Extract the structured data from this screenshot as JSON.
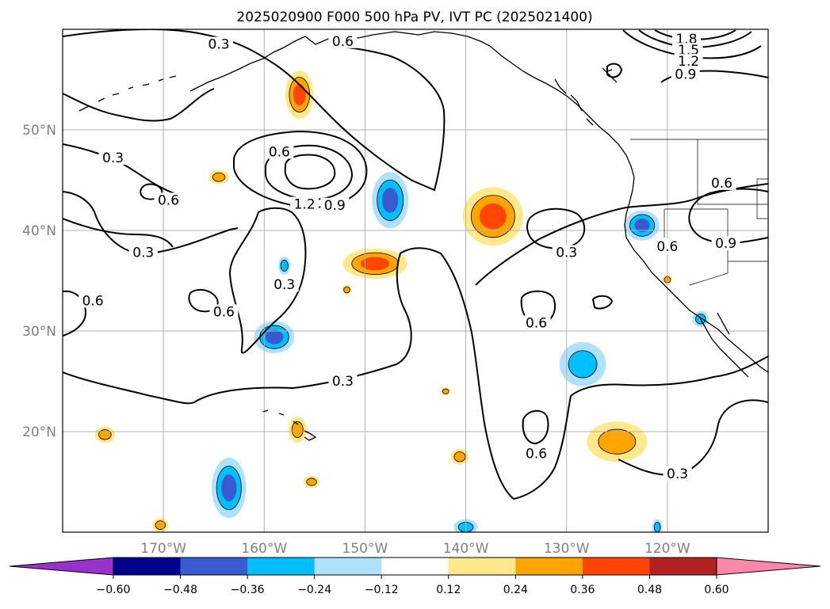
{
  "chart_data": {
    "type": "contour-map",
    "title": "2025020900 F000 500 hPa PV, IVT PC (2025021400)",
    "lon_range": [
      -180,
      -110
    ],
    "lat_range": [
      10,
      60
    ],
    "x_ticks": [
      {
        "lon": -170,
        "label": "170°W"
      },
      {
        "lon": -160,
        "label": "160°W"
      },
      {
        "lon": -150,
        "label": "150°W"
      },
      {
        "lon": -140,
        "label": "140°W"
      },
      {
        "lon": -130,
        "label": "130°W"
      },
      {
        "lon": -120,
        "label": "120°W"
      }
    ],
    "y_ticks": [
      {
        "lat": 20,
        "label": "20°N"
      },
      {
        "lat": 30,
        "label": "30°N"
      },
      {
        "lat": 40,
        "label": "40°N"
      },
      {
        "lat": 50,
        "label": "50°N"
      }
    ],
    "grid": true,
    "contour_line_color": "#000000",
    "contour_labels": [
      {
        "text": "0.3",
        "lon": -175,
        "lat": 47
      },
      {
        "text": "0.3",
        "lon": -164.5,
        "lat": 58.3
      },
      {
        "text": "0.6",
        "lon": -158.5,
        "lat": 47.6
      },
      {
        "text": "1.2",
        "lon": -156,
        "lat": 42.4
      },
      {
        "text": "0.9",
        "lon": -153,
        "lat": 42.3
      },
      {
        "text": "0.6",
        "lon": -169.5,
        "lat": 42.8
      },
      {
        "text": "0.3",
        "lon": -172,
        "lat": 37.6
      },
      {
        "text": "0.6",
        "lon": -177,
        "lat": 32.8
      },
      {
        "text": "0.3",
        "lon": -158,
        "lat": 34.4
      },
      {
        "text": "0.6",
        "lon": -164,
        "lat": 31.7
      },
      {
        "text": "0.3",
        "lon": -152.2,
        "lat": 24.8
      },
      {
        "text": "0.6",
        "lon": -152.2,
        "lat": 58.6
      },
      {
        "text": "1.8",
        "lon": -118.1,
        "lat": 58.8
      },
      {
        "text": "1.5",
        "lon": -117.9,
        "lat": 57.7
      },
      {
        "text": "1.2",
        "lon": -117.9,
        "lat": 56.6
      },
      {
        "text": "0.9",
        "lon": -118.2,
        "lat": 55.3
      },
      {
        "text": "0.6",
        "lon": -114.6,
        "lat": 44.5
      },
      {
        "text": "0.6",
        "lon": -120,
        "lat": 38.2
      },
      {
        "text": "0.9",
        "lon": -114.2,
        "lat": 38.5
      },
      {
        "text": "0.3",
        "lon": -130,
        "lat": 37.6
      },
      {
        "text": "0.6",
        "lon": -133,
        "lat": 30.6
      },
      {
        "text": "0.6",
        "lon": -133,
        "lat": 17.6
      },
      {
        "text": "0.3",
        "lon": -119,
        "lat": 15.6
      }
    ],
    "ivt_blobs": [
      {
        "lon": -156.5,
        "lat": 53.5,
        "rx": 1.4,
        "ry": 2.4,
        "value": 0.42
      },
      {
        "lon": -164.5,
        "lat": 45.3,
        "rx": 1.0,
        "ry": 0.7,
        "value": 0.27
      },
      {
        "lon": -147.5,
        "lat": 43,
        "rx": 1.8,
        "ry": 2.8,
        "value": -0.42
      },
      {
        "lon": -137.3,
        "lat": 41.4,
        "rx": 3.0,
        "ry": 2.9,
        "value": 0.45
      },
      {
        "lon": -149,
        "lat": 36.7,
        "rx": 3.2,
        "ry": 1.5,
        "value": 0.4
      },
      {
        "lon": -158,
        "lat": 36.5,
        "rx": 0.6,
        "ry": 0.9,
        "value": -0.35
      },
      {
        "lon": -151.8,
        "lat": 34.1,
        "rx": 0.5,
        "ry": 0.5,
        "value": 0.28
      },
      {
        "lon": -159,
        "lat": 29.4,
        "rx": 2.0,
        "ry": 1.6,
        "value": -0.42
      },
      {
        "lon": -128.4,
        "lat": 26.7,
        "rx": 2.3,
        "ry": 2.2,
        "value": -0.32
      },
      {
        "lon": -122.5,
        "lat": 40.5,
        "rx": 1.7,
        "ry": 1.5,
        "value": -0.42
      },
      {
        "lon": -120,
        "lat": 35.1,
        "rx": 0.5,
        "ry": 0.5,
        "value": 0.26
      },
      {
        "lon": -116.7,
        "lat": 31.2,
        "rx": 0.8,
        "ry": 0.8,
        "value": -0.3
      },
      {
        "lon": -156.7,
        "lat": 20.2,
        "rx": 0.9,
        "ry": 1.3,
        "value": 0.32
      },
      {
        "lon": -175.8,
        "lat": 19.7,
        "rx": 1.0,
        "ry": 0.8,
        "value": 0.27
      },
      {
        "lon": -163.5,
        "lat": 14.4,
        "rx": 1.7,
        "ry": 3.0,
        "value": -0.44
      },
      {
        "lon": -155.3,
        "lat": 15,
        "rx": 0.8,
        "ry": 0.6,
        "value": 0.26
      },
      {
        "lon": -140.6,
        "lat": 17.5,
        "rx": 0.9,
        "ry": 0.8,
        "value": 0.3
      },
      {
        "lon": -125,
        "lat": 19,
        "rx": 3.0,
        "ry": 2.0,
        "value": 0.32
      },
      {
        "lon": -142,
        "lat": 24,
        "rx": 0.5,
        "ry": 0.4,
        "value": 0.24
      },
      {
        "lon": -170.3,
        "lat": 10.7,
        "rx": 0.8,
        "ry": 0.7,
        "value": 0.27
      },
      {
        "lon": -140,
        "lat": 10.5,
        "rx": 1.2,
        "ry": 0.8,
        "value": -0.32
      },
      {
        "lon": -121,
        "lat": 10.5,
        "rx": 0.5,
        "ry": 0.8,
        "value": -0.28
      }
    ],
    "colorbar": {
      "levels": [
        -0.6,
        -0.48,
        -0.36,
        -0.24,
        -0.12,
        0.12,
        0.24,
        0.36,
        0.48,
        0.6
      ],
      "tick_labels": [
        "−0.60",
        "−0.48",
        "−0.36",
        "−0.24",
        "−0.12",
        "0.12",
        "0.24",
        "0.36",
        "0.48",
        "0.60"
      ],
      "colors": [
        "#9932cc",
        "#00008b",
        "#3a5bd0",
        "#00bfff",
        "#afe1fa",
        "#ffffff",
        "#ffe98a",
        "#ffa500",
        "#ff4500",
        "#b22222",
        "#ff88aa"
      ],
      "extend": "both"
    }
  }
}
